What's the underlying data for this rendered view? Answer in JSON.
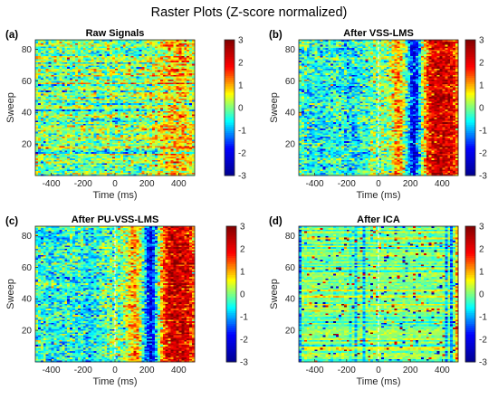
{
  "figure_title": "Raster Plots (Z-score normalized)",
  "colormap": [
    "#00008f",
    "#0000ff",
    "#00ffff",
    "#ffff00",
    "#ff0000",
    "#800000"
  ],
  "chart_data": [
    {
      "type": "heatmap",
      "panel_label": "(a)",
      "title": "Raw Signals",
      "xlabel": "Time (ms)",
      "ylabel": "Sweep",
      "xlim": [
        -500,
        500
      ],
      "ylim": [
        0,
        86
      ],
      "x_ticks": [
        -400,
        -200,
        0,
        200,
        400
      ],
      "y_ticks": [
        20,
        40,
        60,
        80
      ],
      "clim": [
        -3,
        3
      ],
      "colorbar_ticks": [
        3,
        2,
        1,
        0,
        -1,
        -2,
        -3
      ],
      "pattern": "raw",
      "vertical_dashed_line_x": null
    },
    {
      "type": "heatmap",
      "panel_label": "(b)",
      "title": "After VSS-LMS",
      "xlabel": "Time (ms)",
      "ylabel": "Sweep",
      "xlim": [
        -500,
        500
      ],
      "ylim": [
        0,
        86
      ],
      "x_ticks": [
        -400,
        -200,
        0,
        200,
        400
      ],
      "y_ticks": [
        20,
        40,
        60,
        80
      ],
      "clim": [
        -3,
        3
      ],
      "colorbar_ticks": [
        3,
        2,
        1,
        0,
        -1,
        -2,
        -3
      ],
      "pattern": "erp",
      "vertical_dashed_line_x": 0
    },
    {
      "type": "heatmap",
      "panel_label": "(c)",
      "title": "After PU-VSS-LMS",
      "xlabel": "Time (ms)",
      "ylabel": "Sweep",
      "xlim": [
        -500,
        500
      ],
      "ylim": [
        0,
        86
      ],
      "x_ticks": [
        -400,
        -200,
        0,
        200,
        400
      ],
      "y_ticks": [
        20,
        40,
        60,
        80
      ],
      "clim": [
        -3,
        3
      ],
      "colorbar_ticks": [
        3,
        2,
        1,
        0,
        -1,
        -2,
        -3
      ],
      "pattern": "erp",
      "vertical_dashed_line_x": 0
    },
    {
      "type": "heatmap",
      "panel_label": "(d)",
      "title": "After ICA",
      "xlabel": "Time (ms)",
      "ylabel": "Sweep",
      "xlim": [
        -500,
        500
      ],
      "ylim": [
        0,
        86
      ],
      "x_ticks": [
        -400,
        -200,
        0,
        200,
        400
      ],
      "y_ticks": [
        20,
        40,
        60,
        80
      ],
      "clim": [
        -3,
        3
      ],
      "colorbar_ticks": [
        3,
        2,
        1,
        0,
        -1,
        -2,
        -3
      ],
      "pattern": "ica",
      "vertical_dashed_line_x": 0
    }
  ]
}
